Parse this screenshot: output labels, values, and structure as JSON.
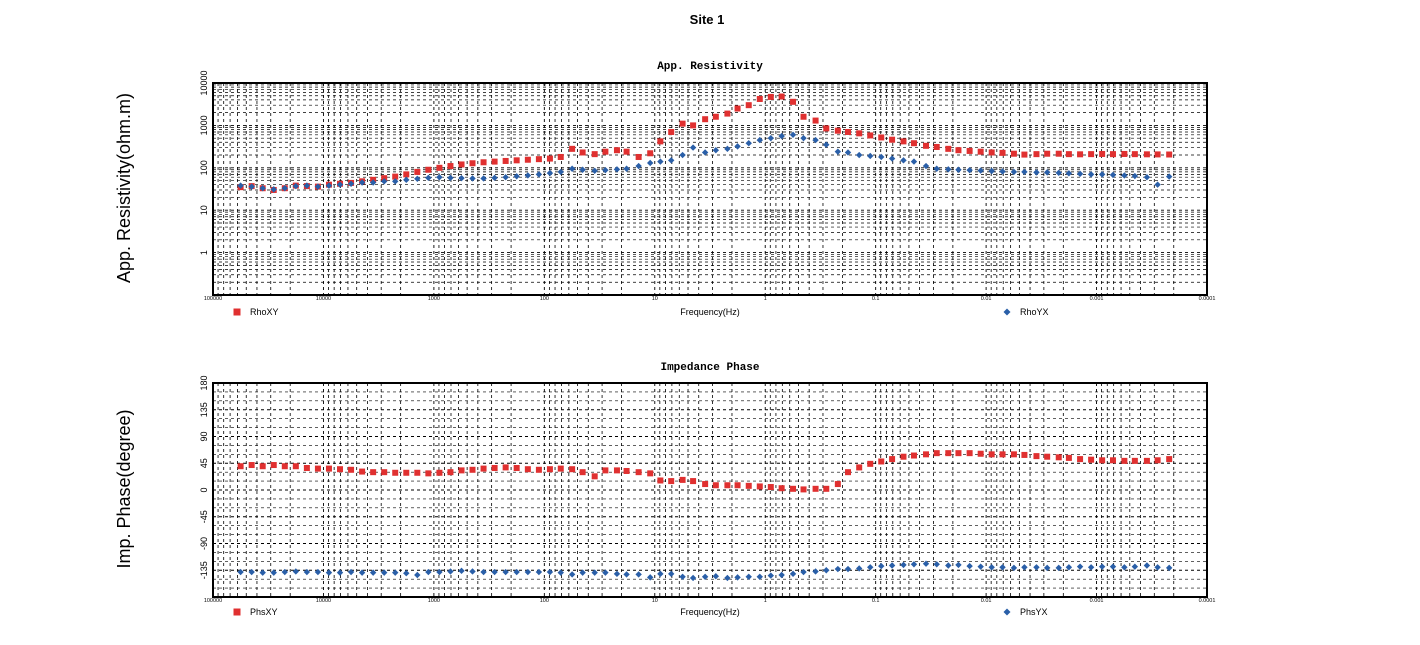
{
  "site_title": "Site 1",
  "colors": {
    "xy": "#e03030",
    "yx": "#2a5fa8",
    "frame": "#000000",
    "grid": "#000000"
  },
  "chart_data": [
    {
      "type": "scatter",
      "title": "App. Resistivity",
      "ylabel": "App. Resistivity(ohm.m)",
      "xlabel": "Frequency(Hz)",
      "x_scale": "log",
      "x_direction": "decreasing",
      "xlim": [
        100000,
        0.0001
      ],
      "x_ticks": [
        "100000",
        "10000",
        "1000",
        "100",
        "10",
        "1",
        "0.1",
        "0.01",
        "0.001",
        "0.0001"
      ],
      "y_scale": "log",
      "ylim": [
        0.1,
        10000
      ],
      "y_ticks": [
        "1",
        "10",
        "100",
        "1000",
        "10000"
      ],
      "grid": true,
      "legend": [
        "RhoXY",
        "RhoYX"
      ],
      "series": [
        {
          "name": "RhoXY",
          "marker": "square",
          "x": [
            56234,
            44668,
            35481,
            28184,
            22387,
            17783,
            14125,
            11220,
            8913,
            7079,
            5623,
            4467,
            3548,
            2818,
            2239,
            1778,
            1413,
            1122,
            891,
            708,
            562,
            447,
            355,
            282,
            224,
            178,
            141,
            112,
            89,
            71,
            56,
            45,
            35,
            28,
            22,
            18,
            14,
            11,
            8.9,
            7.1,
            5.6,
            4.5,
            3.5,
            2.8,
            2.2,
            1.78,
            1.41,
            1.12,
            0.89,
            0.71,
            0.56,
            0.45,
            0.35,
            0.28,
            0.22,
            0.178,
            0.141,
            0.112,
            0.089,
            0.071,
            0.056,
            0.045,
            0.035,
            0.028,
            0.022,
            0.0178,
            0.0141,
            0.0112,
            0.0089,
            0.0071,
            0.0056,
            0.0045,
            0.0035,
            0.0028,
            0.0022,
            0.00178,
            0.00141,
            0.00112,
            0.00089,
            0.00071,
            0.00056,
            0.00045,
            0.00035,
            0.00028,
            0.00022
          ],
          "values": [
            35,
            37,
            33,
            30,
            33,
            38,
            37,
            36,
            40,
            42,
            44,
            48,
            52,
            57,
            62,
            70,
            80,
            90,
            100,
            110,
            120,
            128,
            135,
            140,
            145,
            150,
            155,
            160,
            165,
            180,
            280,
            230,
            210,
            240,
            260,
            240,
            180,
            220,
            420,
            700,
            1100,
            1000,
            1400,
            1600,
            1900,
            2500,
            3000,
            4200,
            4700,
            4800,
            3600,
            1600,
            1300,
            850,
            750,
            700,
            650,
            580,
            520,
            460,
            420,
            380,
            330,
            310,
            280,
            260,
            250,
            240,
            230,
            225,
            215,
            205,
            210,
            215,
            215,
            210,
            208,
            210,
            212,
            210,
            212,
            210,
            208,
            207,
            206
          ]
        },
        {
          "name": "RhoYX",
          "marker": "diamond",
          "x": [
            56234,
            44668,
            35481,
            28184,
            22387,
            17783,
            14125,
            11220,
            8913,
            7079,
            5623,
            4467,
            3548,
            2818,
            2239,
            1778,
            1413,
            1122,
            891,
            708,
            562,
            447,
            355,
            282,
            224,
            178,
            141,
            112,
            89,
            71,
            56,
            45,
            35,
            28,
            22,
            18,
            14,
            11,
            8.9,
            7.1,
            5.6,
            4.5,
            3.5,
            2.8,
            2.2,
            1.78,
            1.41,
            1.12,
            0.89,
            0.71,
            0.56,
            0.45,
            0.35,
            0.28,
            0.22,
            0.178,
            0.141,
            0.112,
            0.089,
            0.071,
            0.056,
            0.045,
            0.035,
            0.028,
            0.022,
            0.0178,
            0.0141,
            0.0112,
            0.0089,
            0.0071,
            0.0056,
            0.0045,
            0.0035,
            0.0028,
            0.0022,
            0.00178,
            0.00141,
            0.00112,
            0.00089,
            0.00071,
            0.00056,
            0.00045,
            0.00035,
            0.00028,
            0.00022
          ],
          "values": [
            38,
            36,
            33,
            31,
            33,
            37,
            38,
            36,
            38,
            40,
            42,
            45,
            45,
            48,
            48,
            52,
            55,
            58,
            60,
            58,
            57,
            56,
            56,
            58,
            60,
            63,
            66,
            70,
            75,
            80,
            95,
            90,
            85,
            88,
            92,
            95,
            110,
            130,
            140,
            150,
            200,
            300,
            230,
            260,
            280,
            320,
            380,
            450,
            500,
            560,
            600,
            500,
            450,
            350,
            240,
            230,
            200,
            190,
            180,
            165,
            150,
            140,
            110,
            95,
            92,
            90,
            88,
            86,
            84,
            82,
            80,
            80,
            78,
            78,
            76,
            74,
            72,
            70,
            70,
            68,
            66,
            64,
            60,
            40,
            62
          ]
        }
      ]
    },
    {
      "type": "scatter",
      "title": "Impedance Phase",
      "ylabel": "Imp. Phase(degree)",
      "xlabel": "Frequency(Hz)",
      "x_scale": "log",
      "x_direction": "decreasing",
      "xlim": [
        100000,
        0.0001
      ],
      "x_ticks": [
        "100000",
        "10000",
        "1000",
        "100",
        "10",
        "1",
        "0.1",
        "0.01",
        "0.001",
        "0.0001"
      ],
      "y_scale": "linear",
      "ylim": [
        -180,
        180
      ],
      "y_ticks": [
        "180",
        "135",
        "90",
        "45",
        "0",
        "-45",
        "-90",
        "-135"
      ],
      "grid": true,
      "legend": [
        "PhsXY",
        "PhsYX"
      ],
      "series": [
        {
          "name": "PhsXY",
          "marker": "square",
          "x": [
            56234,
            44668,
            35481,
            28184,
            22387,
            17783,
            14125,
            11220,
            8913,
            7079,
            5623,
            4467,
            3548,
            2818,
            2239,
            1778,
            1413,
            1122,
            891,
            708,
            562,
            447,
            355,
            282,
            224,
            178,
            141,
            112,
            89,
            71,
            56,
            45,
            35,
            28,
            22,
            18,
            14,
            11,
            8.9,
            7.1,
            5.6,
            4.5,
            3.5,
            2.8,
            2.2,
            1.78,
            1.41,
            1.12,
            0.89,
            0.71,
            0.56,
            0.45,
            0.35,
            0.28,
            0.22,
            0.178,
            0.141,
            0.112,
            0.089,
            0.071,
            0.056,
            0.045,
            0.035,
            0.028,
            0.022,
            0.0178,
            0.0141,
            0.0112,
            0.0089,
            0.0071,
            0.0056,
            0.0045,
            0.0035,
            0.0028,
            0.0022,
            0.00178,
            0.00141,
            0.00112,
            0.00089,
            0.00071,
            0.00056,
            0.00045,
            0.00035,
            0.00028,
            0.00022
          ],
          "values": [
            40,
            42,
            40,
            42,
            40,
            40,
            37,
            36,
            36,
            35,
            34,
            31,
            30,
            30,
            29,
            29,
            29,
            28,
            29,
            30,
            33,
            34,
            36,
            37,
            38,
            37,
            35,
            34,
            35,
            36,
            35,
            30,
            23,
            33,
            33,
            32,
            30,
            28,
            16,
            15,
            17,
            15,
            10,
            8,
            8,
            8,
            7,
            6,
            5,
            3,
            2,
            1,
            2,
            2,
            10,
            30,
            38,
            44,
            48,
            52,
            56,
            58,
            60,
            62,
            62,
            62,
            62,
            61,
            60,
            60,
            60,
            59,
            57,
            56,
            55,
            54,
            52,
            51,
            50,
            50,
            49,
            49,
            49,
            50,
            52
          ]
        },
        {
          "name": "PhsYX",
          "marker": "diamond",
          "x": [
            56234,
            44668,
            35481,
            28184,
            22387,
            17783,
            14125,
            11220,
            8913,
            7079,
            5623,
            4467,
            3548,
            2818,
            2239,
            1778,
            1413,
            1122,
            891,
            708,
            562,
            447,
            355,
            282,
            224,
            178,
            141,
            112,
            89,
            71,
            56,
            45,
            35,
            28,
            22,
            18,
            14,
            11,
            8.9,
            7.1,
            5.6,
            4.5,
            3.5,
            2.8,
            2.2,
            1.78,
            1.41,
            1.12,
            0.89,
            0.71,
            0.56,
            0.45,
            0.35,
            0.28,
            0.22,
            0.178,
            0.141,
            0.112,
            0.089,
            0.071,
            0.056,
            0.045,
            0.035,
            0.028,
            0.022,
            0.0178,
            0.0141,
            0.0112,
            0.0089,
            0.0071,
            0.0056,
            0.0045,
            0.0035,
            0.0028,
            0.0022,
            0.00178,
            0.00141,
            0.00112,
            0.00089,
            0.00071,
            0.00056,
            0.00045,
            0.00035,
            0.00028,
            0.00022
          ],
          "values": [
            -138,
            -138,
            -139,
            -139,
            -138,
            -137,
            -138,
            -138,
            -139,
            -139,
            -138,
            -139,
            -139,
            -139,
            -139,
            -140,
            -143,
            -138,
            -138,
            -137,
            -136,
            -137,
            -138,
            -138,
            -138,
            -138,
            -138,
            -138,
            -138,
            -139,
            -142,
            -139,
            -139,
            -139,
            -141,
            -142,
            -142,
            -147,
            -141,
            -141,
            -146,
            -148,
            -146,
            -145,
            -148,
            -147,
            -146,
            -146,
            -144,
            -143,
            -141,
            -138,
            -137,
            -135,
            -133,
            -133,
            -132,
            -130,
            -128,
            -127,
            -126,
            -125,
            -124,
            -125,
            -127,
            -126,
            -128,
            -129,
            -130,
            -130,
            -131,
            -130,
            -130,
            -131,
            -131,
            -130,
            -129,
            -130,
            -129,
            -129,
            -130,
            -129,
            -127,
            -130,
            -131
          ]
        }
      ]
    }
  ]
}
